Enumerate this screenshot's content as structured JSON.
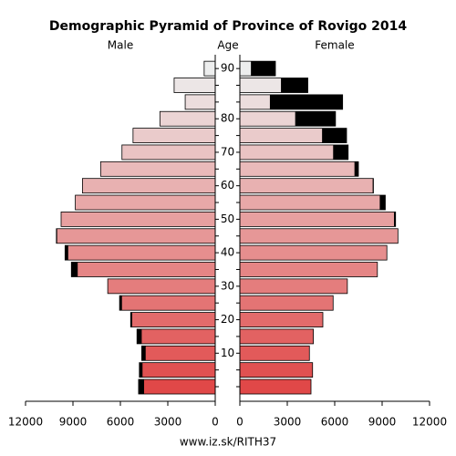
{
  "chart_data": {
    "type": "pyramid",
    "title": "Demographic Pyramid of Province of Rovigo 2014",
    "y_label": "Age",
    "source": "www.iz.sk/RITH37",
    "categories": [
      null,
      null,
      "10",
      null,
      "20",
      null,
      "30",
      null,
      "40",
      null,
      "50",
      null,
      "60",
      null,
      "70",
      null,
      "80",
      null,
      null,
      "90"
    ],
    "series": [
      {
        "name": "Male",
        "values": [
          4850,
          4800,
          4650,
          4950,
          5350,
          6050,
          6800,
          9100,
          9500,
          10050,
          9750,
          8850,
          8400,
          7250,
          5900,
          5200,
          3500,
          1900,
          2600,
          700
        ]
      },
      {
        "name": "Female",
        "values": [
          4500,
          4600,
          4400,
          4650,
          5250,
          5900,
          6800,
          8700,
          9300,
          10000,
          9850,
          9200,
          8450,
          7500,
          6850,
          6750,
          6050,
          6500,
          4300,
          2250
        ]
      }
    ],
    "colors": [
      "#e04848",
      "#e05151",
      "#e25a5a",
      "#e26262",
      "#e36b6b",
      "#e47474",
      "#e47d7d",
      "#e58585",
      "#e68e8e",
      "#e69797",
      "#e7a0a0",
      "#e8a8a8",
      "#e8b1b1",
      "#e9baba",
      "#eac3c3",
      "#eacbcb",
      "#ebd4d4",
      "#ecdddd",
      "#ece6e6",
      "#edeeee"
    ],
    "excess_color": "#000000",
    "xlim": [
      0,
      12000
    ],
    "xticks": [
      0,
      3000,
      6000,
      9000,
      12000
    ]
  }
}
